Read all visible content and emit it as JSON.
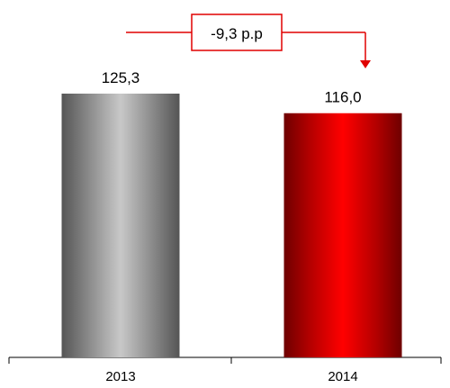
{
  "chart_data": {
    "type": "bar",
    "categories": [
      "2013",
      "2014"
    ],
    "values": [
      125.3,
      116.0
    ],
    "value_labels": [
      "125,3",
      "116,0"
    ],
    "ylim": [
      0,
      125.3
    ],
    "grid": false,
    "colors": {
      "bar_2013": "#b0b0b0",
      "bar_2014": "#e00000",
      "annotation": "#e00000",
      "axis": "#000000"
    },
    "annotation": {
      "text": "-9,3 p.p",
      "from_category": "2013",
      "to_category": "2014",
      "arrow": "down-arrow"
    }
  }
}
